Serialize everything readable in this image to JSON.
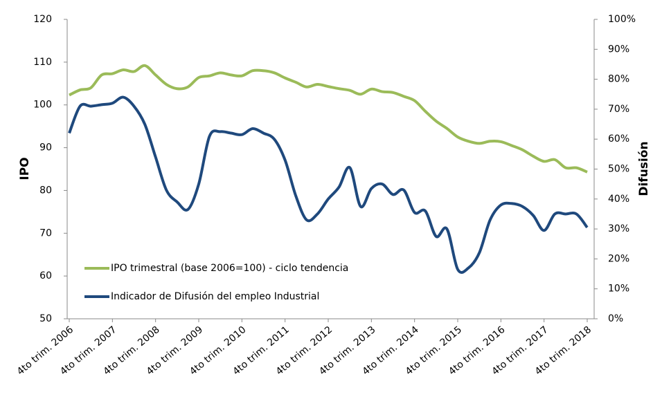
{
  "chart_data": {
    "type": "line",
    "y_label": "IPO",
    "y2_label": "Difusión",
    "categories": [
      "4to trim. 2006",
      null,
      null,
      null,
      "4to trim. 2007",
      null,
      null,
      null,
      "4to trim. 2008",
      null,
      null,
      null,
      "4to trim. 2009",
      null,
      null,
      null,
      "4to trim. 2010",
      null,
      null,
      null,
      "4to trim. 2011",
      null,
      null,
      null,
      "4to trim. 2012",
      null,
      null,
      null,
      "4to trim. 2013",
      null,
      null,
      null,
      "4to trim. 2014",
      null,
      null,
      null,
      "4to trim. 2015",
      null,
      null,
      null,
      "4to trim. 2016",
      null,
      null,
      null,
      "4to trim. 2017",
      null,
      null,
      null,
      "4to trim. 2018"
    ],
    "series": [
      {
        "name": "IPO trimestral (base 2006=100) - ciclo tendencia",
        "color": "#9bbb59",
        "values": [
          102.3,
          103.5,
          104,
          107,
          107.3,
          108.2,
          107.8,
          109.2,
          107,
          104.8,
          103.8,
          104.2,
          106.4,
          106.8,
          107.5,
          107,
          106.8,
          108,
          108,
          107.5,
          106.3,
          105.3,
          104.2,
          104.8,
          104.3,
          103.8,
          103.4,
          102.5,
          103.7,
          103.1,
          102.9,
          102,
          101,
          98.5,
          96.2,
          94.5,
          92.5,
          91.5,
          91,
          91.5,
          91.4,
          90.5,
          89.5,
          88,
          86.8,
          87.2,
          85.3,
          85.3,
          84.3
        ]
      },
      {
        "name": "Indicador de Difusión del empleo Industrial",
        "color": "#1f497d",
        "axis": "y2",
        "values": [
          62,
          71,
          71,
          71.5,
          72,
          74,
          71,
          65,
          54,
          43,
          39,
          36.5,
          45,
          61,
          62.5,
          62,
          61.5,
          63.5,
          62,
          60,
          53,
          41,
          33,
          35,
          40,
          44,
          50.5,
          37.5,
          43.5,
          45,
          41.5,
          43,
          35.5,
          36,
          27.5,
          30,
          16.5,
          17,
          22,
          33,
          38,
          38.5,
          37.5,
          34.5,
          29.5,
          35,
          35,
          35,
          30.5
        ]
      }
    ],
    "ylim": [
      50,
      120
    ],
    "yticks": [
      50,
      60,
      70,
      80,
      90,
      100,
      110,
      120
    ],
    "y2lim": [
      0,
      100
    ],
    "y2ticks": [
      {
        "value": 0,
        "label": "0%"
      },
      {
        "value": 10,
        "label": "10%"
      },
      {
        "value": 20,
        "label": "20%"
      },
      {
        "value": 30,
        "label": "30%"
      },
      {
        "value": 40,
        "label": "40%"
      },
      {
        "value": 50,
        "label": "50%"
      },
      {
        "value": 60,
        "label": "60%"
      },
      {
        "value": 70,
        "label": "70%"
      },
      {
        "value": 80,
        "label": "80%"
      },
      {
        "value": 90,
        "label": "90%"
      },
      {
        "value": 100,
        "label": "100%"
      }
    ],
    "legend": "lower left"
  }
}
